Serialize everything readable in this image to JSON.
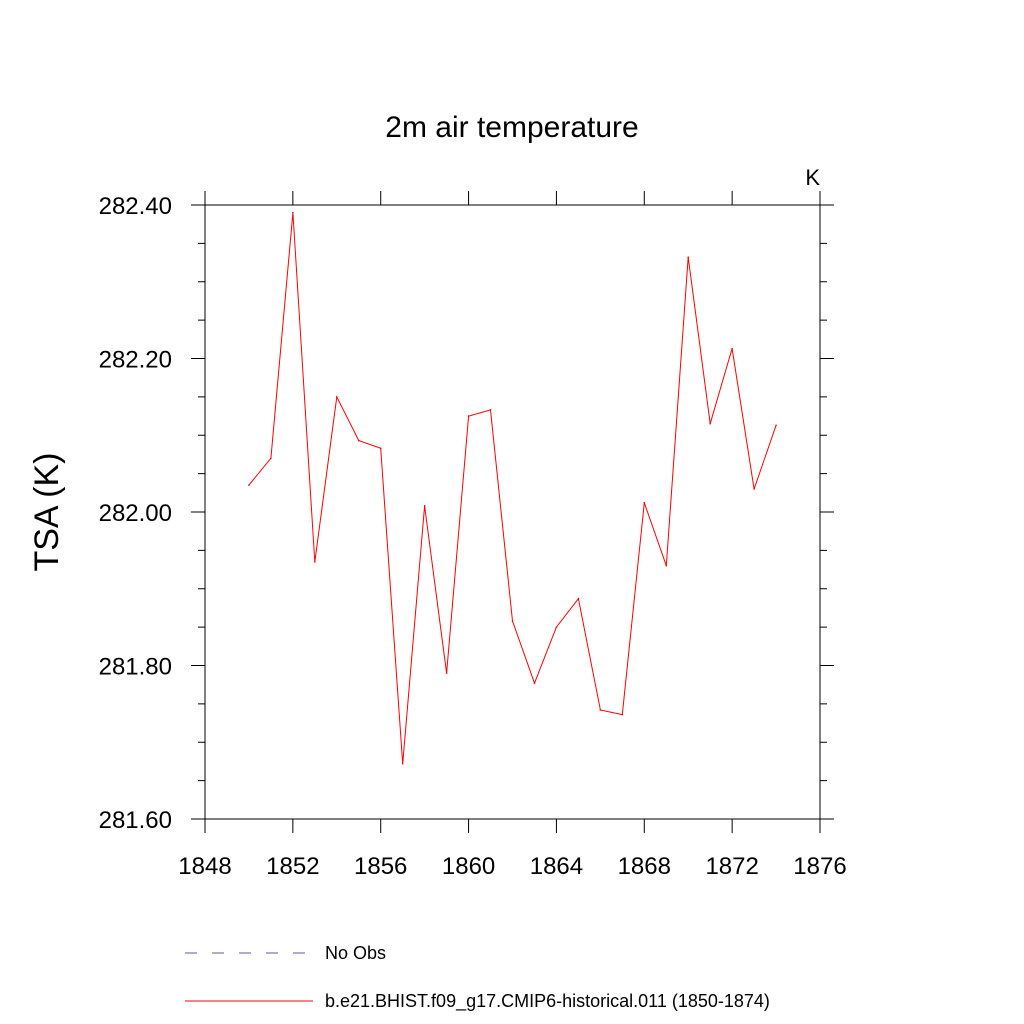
{
  "chart_data": {
    "type": "line",
    "title": "2m air temperature",
    "ylabel": "TSA  (K)",
    "units_label": "K",
    "xlim": [
      1848,
      1876
    ],
    "ylim": [
      281.6,
      282.4
    ],
    "x_ticks": [
      1848,
      1852,
      1856,
      1860,
      1864,
      1868,
      1872,
      1876
    ],
    "x_tick_labels": [
      "1848",
      "1852",
      "1856",
      "1860",
      "1864",
      "1868",
      "1872",
      "1876"
    ],
    "y_ticks": [
      281.6,
      281.8,
      282.0,
      282.2,
      282.4
    ],
    "y_tick_labels": [
      "281.60",
      "281.80",
      "282.00",
      "282.20",
      "282.40"
    ],
    "y_minor_step": 0.05,
    "x_minor_step": 1,
    "grid": false,
    "legend_placement": "bottom",
    "series": [
      {
        "name": "b.e21.BHIST.f09_g17.CMIP6-historical.011 (1850-1874)",
        "color": "#ff0000",
        "style": "solid",
        "x": [
          1850,
          1851,
          1852,
          1853,
          1854,
          1855,
          1856,
          1857,
          1858,
          1859,
          1860,
          1861,
          1862,
          1863,
          1864,
          1865,
          1866,
          1867,
          1868,
          1869,
          1870,
          1871,
          1872,
          1873,
          1874
        ],
        "y": [
          282.035,
          282.07,
          282.39,
          281.935,
          282.15,
          282.093,
          282.083,
          281.672,
          282.008,
          281.79,
          282.125,
          282.133,
          281.858,
          281.777,
          281.85,
          281.887,
          281.742,
          281.736,
          282.012,
          281.93,
          282.332,
          282.115,
          282.213,
          282.03,
          282.113
        ]
      }
    ],
    "legend": [
      {
        "label": "No Obs",
        "color": "#5a5aa8",
        "style": "dashed"
      },
      {
        "label": "b.e21.BHIST.f09_g17.CMIP6-historical.011 (1850-1874)",
        "color": "#ff0000",
        "style": "solid"
      }
    ]
  }
}
